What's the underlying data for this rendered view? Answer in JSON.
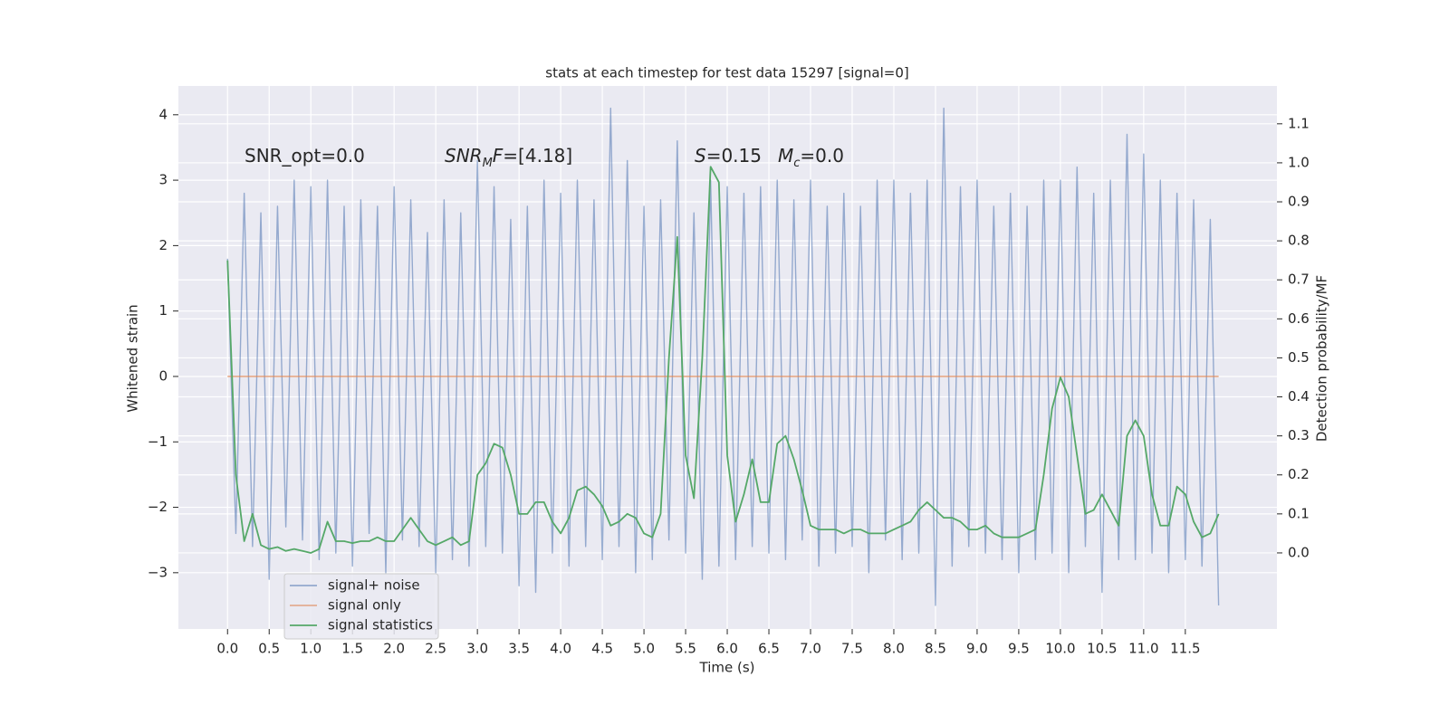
{
  "chart_data": {
    "type": "line",
    "title": "stats at each timestep for test data 15297 [signal=0]",
    "xlabel": "Time (s)",
    "ylabel": "Whitened strain",
    "y2label": "Detection probability/MF",
    "annotations": [
      {
        "parts": [
          {
            "text": "SNR_opt=0.0"
          }
        ]
      },
      {
        "parts": [
          {
            "text": "SNR",
            "style": "italic"
          },
          {
            "text": "M",
            "style": "italic-sub"
          },
          {
            "text": "F",
            "style": "italic"
          },
          {
            "text": "=[4.18]"
          }
        ]
      },
      {
        "parts": [
          {
            "text": "S",
            "style": "italic"
          },
          {
            "text": "=0.15"
          }
        ]
      },
      {
        "parts": [
          {
            "text": "M",
            "style": "italic"
          },
          {
            "text": "c",
            "style": "italic-sub"
          },
          {
            "text": "=0.0"
          }
        ]
      }
    ],
    "x": [
      0.0,
      0.1,
      0.2,
      0.3,
      0.4,
      0.5,
      0.6,
      0.7,
      0.8,
      0.9,
      1.0,
      1.1,
      1.2,
      1.3,
      1.4,
      1.5,
      1.6,
      1.7,
      1.8,
      1.9,
      2.0,
      2.1,
      2.2,
      2.3,
      2.4,
      2.5,
      2.6,
      2.7,
      2.8,
      2.9,
      3.0,
      3.1,
      3.2,
      3.3,
      3.4,
      3.5,
      3.6,
      3.7,
      3.8,
      3.9,
      4.0,
      4.1,
      4.2,
      4.3,
      4.4,
      4.5,
      4.6,
      4.7,
      4.8,
      4.9,
      5.0,
      5.1,
      5.2,
      5.3,
      5.4,
      5.5,
      5.6,
      5.7,
      5.8,
      5.9,
      6.0,
      6.1,
      6.2,
      6.3,
      6.4,
      6.5,
      6.6,
      6.7,
      6.8,
      6.9,
      7.0,
      7.1,
      7.2,
      7.3,
      7.4,
      7.5,
      7.6,
      7.7,
      7.8,
      7.9,
      8.0,
      8.1,
      8.2,
      8.3,
      8.4,
      8.5,
      8.6,
      8.7,
      8.8,
      8.9,
      9.0,
      9.1,
      9.2,
      9.3,
      9.4,
      9.5,
      9.6,
      9.7,
      9.8,
      9.9,
      10.0,
      10.1,
      10.2,
      10.3,
      10.4,
      10.5,
      10.6,
      10.7,
      10.8,
      10.9,
      11.0,
      11.1,
      11.2,
      11.3,
      11.4,
      11.5,
      11.6,
      11.7,
      11.8,
      11.9
    ],
    "series": [
      {
        "name": "signal+ noise",
        "color": "#4c72b0",
        "axis": "y",
        "values": [
          1.8,
          -2.4,
          2.8,
          -2.6,
          2.5,
          -3.1,
          2.6,
          -2.3,
          3.0,
          -2.5,
          2.9,
          -2.8,
          3.0,
          -2.7,
          2.6,
          -2.9,
          2.7,
          -2.4,
          2.6,
          -3.0,
          2.9,
          -2.5,
          2.7,
          -2.6,
          2.2,
          -3.0,
          2.7,
          -2.8,
          2.5,
          -2.9,
          3.3,
          -2.6,
          2.9,
          -2.7,
          2.4,
          -3.2,
          2.6,
          -3.3,
          3.0,
          -2.7,
          2.8,
          -2.9,
          3.0,
          -2.6,
          2.7,
          -2.8,
          4.1,
          -2.6,
          3.3,
          -3.0,
          2.6,
          -2.8,
          2.7,
          -2.5,
          3.6,
          -2.7,
          2.5,
          -3.1,
          3.0,
          -2.9,
          2.9,
          -2.8,
          2.8,
          -2.6,
          2.9,
          -2.7,
          3.0,
          -2.8,
          2.7,
          -2.5,
          3.0,
          -2.9,
          2.6,
          -2.7,
          2.8,
          -2.6,
          2.6,
          -3.0,
          3.0,
          -2.5,
          3.0,
          -2.8,
          2.8,
          -2.7,
          3.0,
          -3.5,
          4.1,
          -2.9,
          2.9,
          -2.6,
          3.0,
          -2.7,
          2.6,
          -2.8,
          2.8,
          -3.0,
          2.6,
          -2.8,
          3.0,
          -2.7,
          3.0,
          -3.0,
          3.2,
          -2.6,
          2.8,
          -3.3,
          3.0,
          -2.8,
          3.7,
          -2.8,
          3.4,
          -2.7,
          3.0,
          -3.0,
          2.8,
          -2.8,
          2.7,
          -2.9,
          2.4,
          -3.5
        ]
      },
      {
        "name": "signal only",
        "color": "#dd8452",
        "axis": "y",
        "values": [
          0,
          0,
          0,
          0,
          0,
          0,
          0,
          0,
          0,
          0,
          0,
          0,
          0,
          0,
          0,
          0,
          0,
          0,
          0,
          0,
          0,
          0,
          0,
          0,
          0,
          0,
          0,
          0,
          0,
          0,
          0,
          0,
          0,
          0,
          0,
          0,
          0,
          0,
          0,
          0,
          0,
          0,
          0,
          0,
          0,
          0,
          0,
          0,
          0,
          0,
          0,
          0,
          0,
          0,
          0,
          0,
          0,
          0,
          0,
          0,
          0,
          0,
          0,
          0,
          0,
          0,
          0,
          0,
          0,
          0,
          0,
          0,
          0,
          0,
          0,
          0,
          0,
          0,
          0,
          0,
          0,
          0,
          0,
          0,
          0,
          0,
          0,
          0,
          0,
          0,
          0,
          0,
          0,
          0,
          0,
          0,
          0,
          0,
          0,
          0,
          0,
          0,
          0,
          0,
          0,
          0,
          0,
          0,
          0,
          0,
          0,
          0,
          0,
          0,
          0,
          0,
          0,
          0,
          0,
          0
        ]
      },
      {
        "name": "signal statistics",
        "color": "#55a868",
        "axis": "y2",
        "values": [
          0.75,
          0.2,
          0.03,
          0.1,
          0.02,
          0.01,
          0.015,
          0.005,
          0.01,
          0.005,
          0.0,
          0.01,
          0.08,
          0.03,
          0.03,
          0.025,
          0.03,
          0.03,
          0.04,
          0.03,
          0.03,
          0.06,
          0.09,
          0.06,
          0.03,
          0.02,
          0.03,
          0.04,
          0.02,
          0.03,
          0.2,
          0.23,
          0.28,
          0.27,
          0.2,
          0.1,
          0.1,
          0.13,
          0.13,
          0.08,
          0.05,
          0.09,
          0.16,
          0.17,
          0.15,
          0.12,
          0.07,
          0.08,
          0.1,
          0.09,
          0.05,
          0.04,
          0.1,
          0.5,
          0.81,
          0.25,
          0.14,
          0.5,
          0.99,
          0.95,
          0.25,
          0.08,
          0.15,
          0.24,
          0.13,
          0.13,
          0.28,
          0.3,
          0.24,
          0.16,
          0.07,
          0.06,
          0.06,
          0.06,
          0.05,
          0.06,
          0.06,
          0.05,
          0.05,
          0.05,
          0.06,
          0.07,
          0.08,
          0.11,
          0.13,
          0.11,
          0.09,
          0.09,
          0.08,
          0.06,
          0.06,
          0.07,
          0.05,
          0.04,
          0.04,
          0.04,
          0.05,
          0.06,
          0.2,
          0.37,
          0.45,
          0.4,
          0.25,
          0.1,
          0.11,
          0.15,
          0.11,
          0.07,
          0.3,
          0.34,
          0.3,
          0.15,
          0.07,
          0.07,
          0.17,
          0.15,
          0.08,
          0.04,
          0.05,
          0.1
        ]
      }
    ],
    "xlim": [
      -0.59,
      12.6
    ],
    "ylim": [
      -3.86,
      4.44
    ],
    "y2lim": [
      -0.195,
      1.197
    ],
    "xticks": [
      {
        "value": 0,
        "label": "0.0"
      },
      {
        "value": 0.5,
        "label": "0.5"
      },
      {
        "value": 1,
        "label": "1.0"
      },
      {
        "value": 1.5,
        "label": "1.5"
      },
      {
        "value": 2,
        "label": "2.0"
      },
      {
        "value": 2.5,
        "label": "2.5"
      },
      {
        "value": 3,
        "label": "3.0"
      },
      {
        "value": 3.5,
        "label": "3.5"
      },
      {
        "value": 4,
        "label": "4.0"
      },
      {
        "value": 4.5,
        "label": "4.5"
      },
      {
        "value": 5,
        "label": "5.0"
      },
      {
        "value": 5.5,
        "label": "5.5"
      },
      {
        "value": 6,
        "label": "6.0"
      },
      {
        "value": 6.5,
        "label": "6.5"
      },
      {
        "value": 7,
        "label": "7.0"
      },
      {
        "value": 7.5,
        "label": "7.5"
      },
      {
        "value": 8,
        "label": "8.0"
      },
      {
        "value": 8.5,
        "label": "8.5"
      },
      {
        "value": 9,
        "label": "9.0"
      },
      {
        "value": 9.5,
        "label": "9.5"
      },
      {
        "value": 10,
        "label": "10.0"
      },
      {
        "value": 10.5,
        "label": "10.5"
      },
      {
        "value": 11,
        "label": "11.0"
      },
      {
        "value": 11.5,
        "label": "11.5"
      }
    ],
    "yticks": [
      {
        "value": -3,
        "label": "−3"
      },
      {
        "value": -2,
        "label": "−2"
      },
      {
        "value": -1,
        "label": "−1"
      },
      0,
      1,
      2,
      3,
      4
    ],
    "y2ticks": [
      {
        "value": 0,
        "label": "0.0"
      },
      {
        "value": 0.1,
        "label": "0.1"
      },
      {
        "value": 0.2,
        "label": "0.2"
      },
      {
        "value": 0.3,
        "label": "0.3"
      },
      {
        "value": 0.4,
        "label": "0.4"
      },
      {
        "value": 0.5,
        "label": "0.5"
      },
      {
        "value": 0.6,
        "label": "0.6"
      },
      {
        "value": 0.7,
        "label": "0.7"
      },
      {
        "value": 0.8,
        "label": "0.8"
      },
      {
        "value": 0.9,
        "label": "0.9"
      },
      {
        "value": 1,
        "label": "1.0"
      },
      {
        "value": 1.1,
        "label": "1.1"
      }
    ],
    "grid": true,
    "legend": "lower left",
    "background": "#eaeaf2"
  }
}
